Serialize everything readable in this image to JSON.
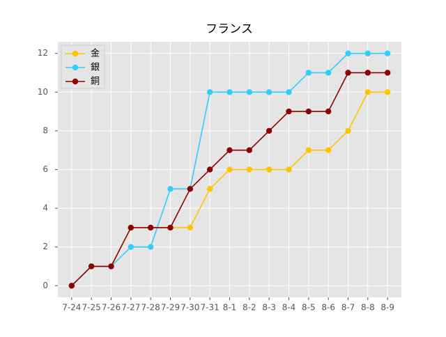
{
  "chart_data": {
    "type": "line",
    "title": "フランス",
    "categories": [
      "7-24",
      "7-25",
      "7-26",
      "7-27",
      "7-28",
      "7-29",
      "7-30",
      "7-31",
      "8-1",
      "8-2",
      "8-3",
      "8-4",
      "8-5",
      "8-6",
      "8-7",
      "8-8",
      "8-9"
    ],
    "series": [
      {
        "name": "金",
        "color": "#ffc400",
        "values": [
          0,
          1,
          1,
          3,
          3,
          3,
          3,
          5,
          6,
          6,
          6,
          6,
          7,
          7,
          8,
          10,
          10
        ]
      },
      {
        "name": "銀",
        "color": "#33ccff",
        "values": [
          0,
          1,
          1,
          2,
          2,
          5,
          5,
          10,
          10,
          10,
          10,
          10,
          11,
          11,
          12,
          12,
          12
        ]
      },
      {
        "name": "銅",
        "color": "#8b0000",
        "values": [
          0,
          1,
          1,
          3,
          3,
          3,
          5,
          6,
          7,
          7,
          8,
          9,
          9,
          9,
          11,
          11,
          11
        ]
      }
    ],
    "ylim": [
      -0.6,
      12.6
    ],
    "yticks": [
      0,
      2,
      4,
      6,
      8,
      10,
      12
    ],
    "grid": true,
    "legend": "upper left"
  }
}
